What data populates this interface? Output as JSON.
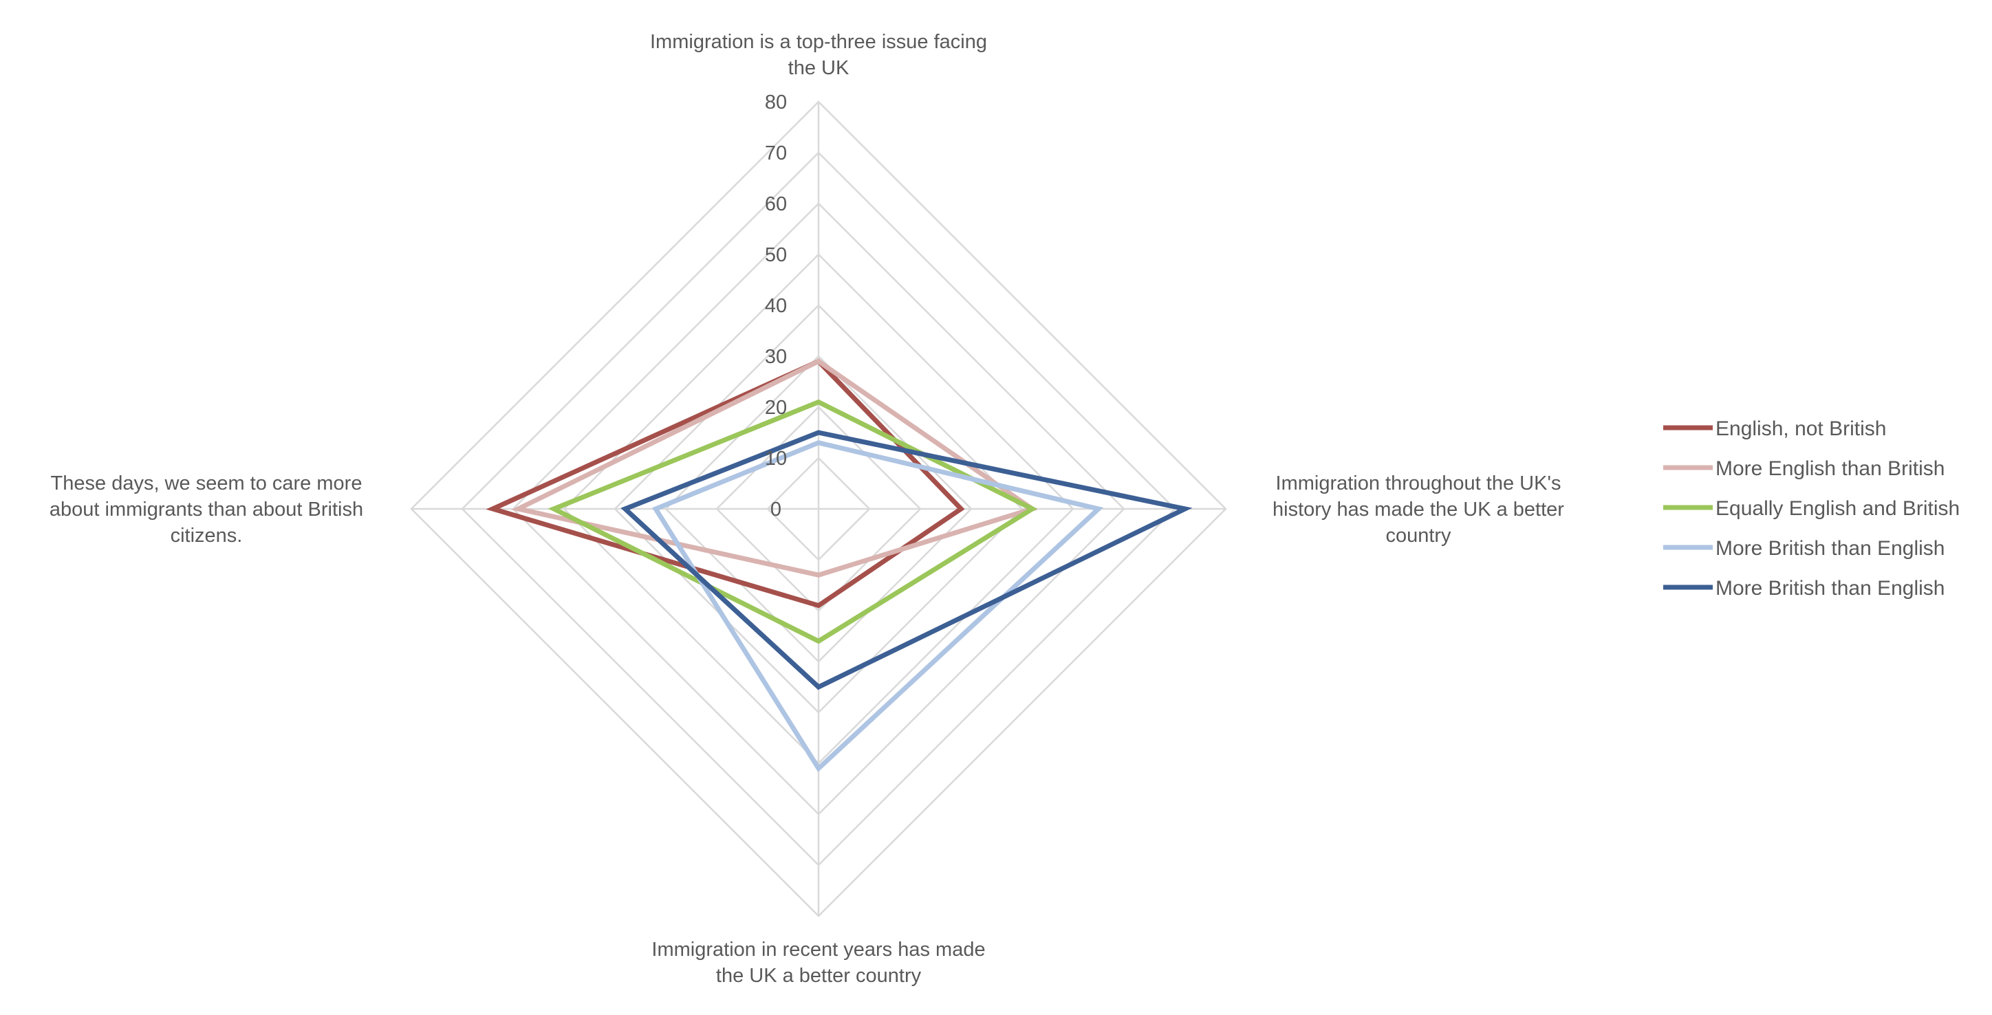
{
  "chart_data": {
    "type": "radar",
    "title": "",
    "axes": [
      {
        "key": "top",
        "label_lines": [
          "Immigration is a top-three issue facing",
          "the UK"
        ]
      },
      {
        "key": "right",
        "label_lines": [
          "Immigration throughout the UK's",
          "history has made the UK a better",
          "country"
        ]
      },
      {
        "key": "bottom",
        "label_lines": [
          "Immigration in recent years has made",
          "the UK a better country"
        ]
      },
      {
        "key": "left",
        "label_lines": [
          "These days, we seem to care more",
          "about immigrants than about British",
          "citizens."
        ]
      }
    ],
    "range": [
      0,
      80
    ],
    "ticks": [
      "0",
      "10",
      "20",
      "30",
      "40",
      "50",
      "60",
      "70",
      "80"
    ],
    "tick_values": [
      0,
      10,
      20,
      30,
      40,
      50,
      60,
      70,
      80
    ],
    "grid": true,
    "legend_position": "right",
    "series": [
      {
        "name": "English, not British",
        "color": "#a5504b",
        "values": [
          29,
          28,
          19,
          64
        ]
      },
      {
        "name": "More English than British",
        "color": "#d9b3b0",
        "values": [
          29,
          42,
          13,
          59
        ]
      },
      {
        "name": "Equally English and British",
        "color": "#9bc65a",
        "values": [
          21,
          42,
          26,
          52
        ]
      },
      {
        "name": "More British than English",
        "color": "#aec4e3",
        "values": [
          13,
          55,
          51,
          32
        ]
      },
      {
        "name": "More British than English",
        "color": "#3c5f94",
        "values": [
          15,
          72,
          35,
          38
        ]
      }
    ]
  }
}
